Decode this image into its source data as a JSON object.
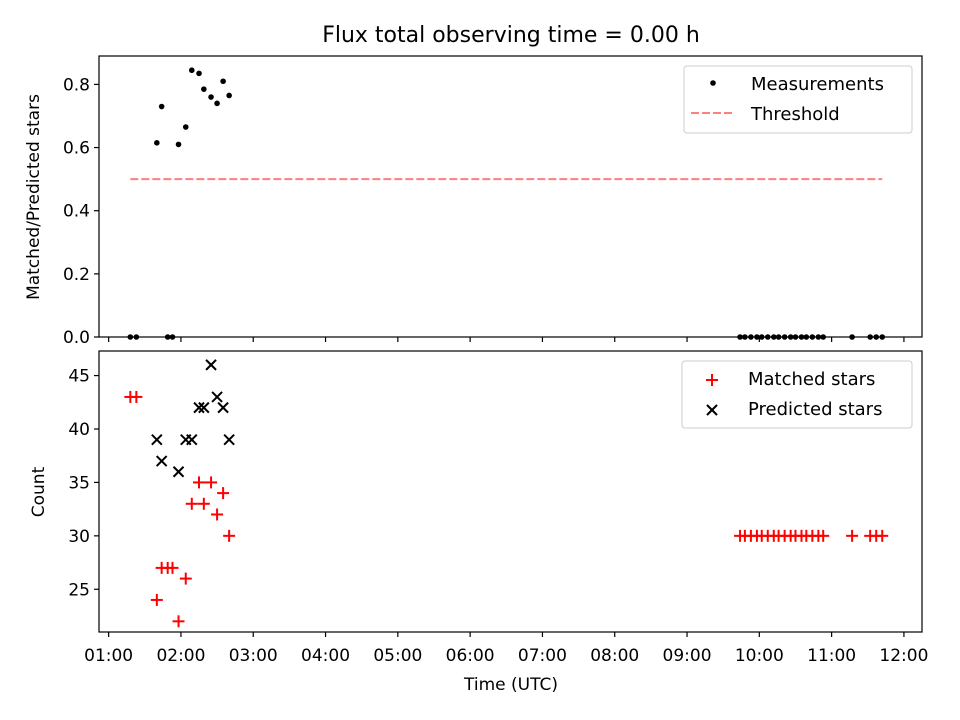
{
  "chart_data": [
    {
      "type": "scatter",
      "title": "Flux total observing time = 0.00 h",
      "xlabel": "",
      "ylabel": "Matched/Predicted stars",
      "xlim": [
        "00:52",
        "12:15"
      ],
      "ylim": [
        0,
        0.89
      ],
      "yticks": [
        0.0,
        0.2,
        0.4,
        0.6,
        0.8
      ],
      "ytick_labels": [
        "0.0",
        "0.2",
        "0.4",
        "0.6",
        "0.8"
      ],
      "legend_position": "top-right",
      "series": [
        {
          "name": "Measurements",
          "marker": "dot",
          "color": "#000000",
          "x": [
            "01:18",
            "01:23",
            "01:40",
            "01:44",
            "01:49",
            "01:53",
            "01:58",
            "02:04",
            "02:09",
            "02:15",
            "02:19",
            "02:25",
            "02:30",
            "02:35",
            "02:40",
            "09:44",
            "09:48",
            "09:53",
            "09:58",
            "10:02",
            "10:07",
            "10:12",
            "10:16",
            "10:21",
            "10:26",
            "10:30",
            "10:35",
            "10:39",
            "10:44",
            "10:49",
            "10:53",
            "11:17",
            "11:32",
            "11:37",
            "11:42"
          ],
          "y": [
            0.0,
            0.0,
            0.615,
            0.73,
            0.0,
            0.0,
            0.61,
            0.665,
            0.845,
            0.835,
            0.785,
            0.76,
            0.74,
            0.81,
            0.765,
            0.0,
            0.0,
            0.0,
            0.0,
            0.0,
            0.0,
            0.0,
            0.0,
            0.0,
            0.0,
            0.0,
            0.0,
            0.0,
            0.0,
            0.0,
            0.0,
            0.0,
            0.0,
            0.0,
            0.0
          ]
        },
        {
          "name": "Threshold",
          "marker": "dashed-line",
          "color": "#ff7f7f",
          "x": [
            "01:18",
            "11:42"
          ],
          "y": [
            0.5,
            0.5
          ]
        }
      ]
    },
    {
      "type": "scatter",
      "title": "",
      "xlabel": "Time (UTC)",
      "ylabel": "Count",
      "xlim": [
        "00:52",
        "12:15"
      ],
      "ylim": [
        21,
        47.3
      ],
      "xticks": [
        "01:00",
        "02:00",
        "03:00",
        "04:00",
        "05:00",
        "06:00",
        "07:00",
        "08:00",
        "09:00",
        "10:00",
        "11:00",
        "12:00"
      ],
      "yticks": [
        25,
        30,
        35,
        40,
        45
      ],
      "ytick_labels": [
        "25",
        "30",
        "35",
        "40",
        "45"
      ],
      "legend_position": "top-right",
      "series": [
        {
          "name": "Matched stars",
          "marker": "plus",
          "color": "#ff0000",
          "x": [
            "01:18",
            "01:23",
            "01:40",
            "01:44",
            "01:49",
            "01:53",
            "01:58",
            "02:04",
            "02:09",
            "02:15",
            "02:19",
            "02:25",
            "02:30",
            "02:35",
            "02:40",
            "09:44",
            "09:48",
            "09:53",
            "09:58",
            "10:02",
            "10:07",
            "10:12",
            "10:16",
            "10:21",
            "10:26",
            "10:30",
            "10:35",
            "10:39",
            "10:44",
            "10:49",
            "10:53",
            "11:17",
            "11:32",
            "11:37",
            "11:42"
          ],
          "y": [
            43,
            43,
            24,
            27,
            27,
            27,
            22,
            26,
            33,
            35,
            33,
            35,
            32,
            34,
            30,
            30,
            30,
            30,
            30,
            30,
            30,
            30,
            30,
            30,
            30,
            30,
            30,
            30,
            30,
            30,
            30,
            30,
            30,
            30,
            30
          ]
        },
        {
          "name": "Predicted stars",
          "marker": "x",
          "color": "#000000",
          "x": [
            "01:40",
            "01:44",
            "01:58",
            "02:04",
            "02:09",
            "02:15",
            "02:19",
            "02:25",
            "02:30",
            "02:35",
            "02:40"
          ],
          "y": [
            39,
            37,
            36,
            39,
            39,
            42,
            42,
            46,
            43,
            42,
            39
          ]
        }
      ]
    }
  ]
}
